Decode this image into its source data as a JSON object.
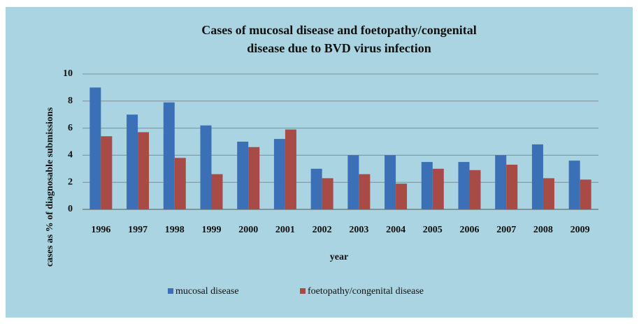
{
  "chart_data": {
    "type": "bar",
    "title": "Cases of mucosal disease and foetopathy/congenital disease due to BVD virus infection",
    "x_label": "year",
    "y_label": "cases as % of diagnosable submissions",
    "categories": [
      "1996",
      "1997",
      "1998",
      "1999",
      "2000",
      "2001",
      "2002",
      "2003",
      "2004",
      "2005",
      "2006",
      "2007",
      "2008",
      "2009"
    ],
    "series": [
      {
        "name": "mucosal disease",
        "color": "#3b6fb6",
        "values": [
          9,
          7,
          7.9,
          6.2,
          5,
          5.2,
          3,
          4,
          4,
          3.5,
          3.5,
          4,
          4.8,
          3.6
        ]
      },
      {
        "name": "foetopathy/congenital disease",
        "color": "#a84b47",
        "values": [
          5.4,
          5.7,
          3.8,
          2.6,
          4.6,
          5.9,
          2.3,
          2.6,
          1.9,
          3,
          2.9,
          3.3,
          2.3,
          2.2
        ]
      }
    ],
    "ylim": [
      0,
      10
    ],
    "yticks": [
      0,
      2,
      4,
      6,
      8,
      10
    ],
    "grid": true,
    "legend": "bottom"
  }
}
